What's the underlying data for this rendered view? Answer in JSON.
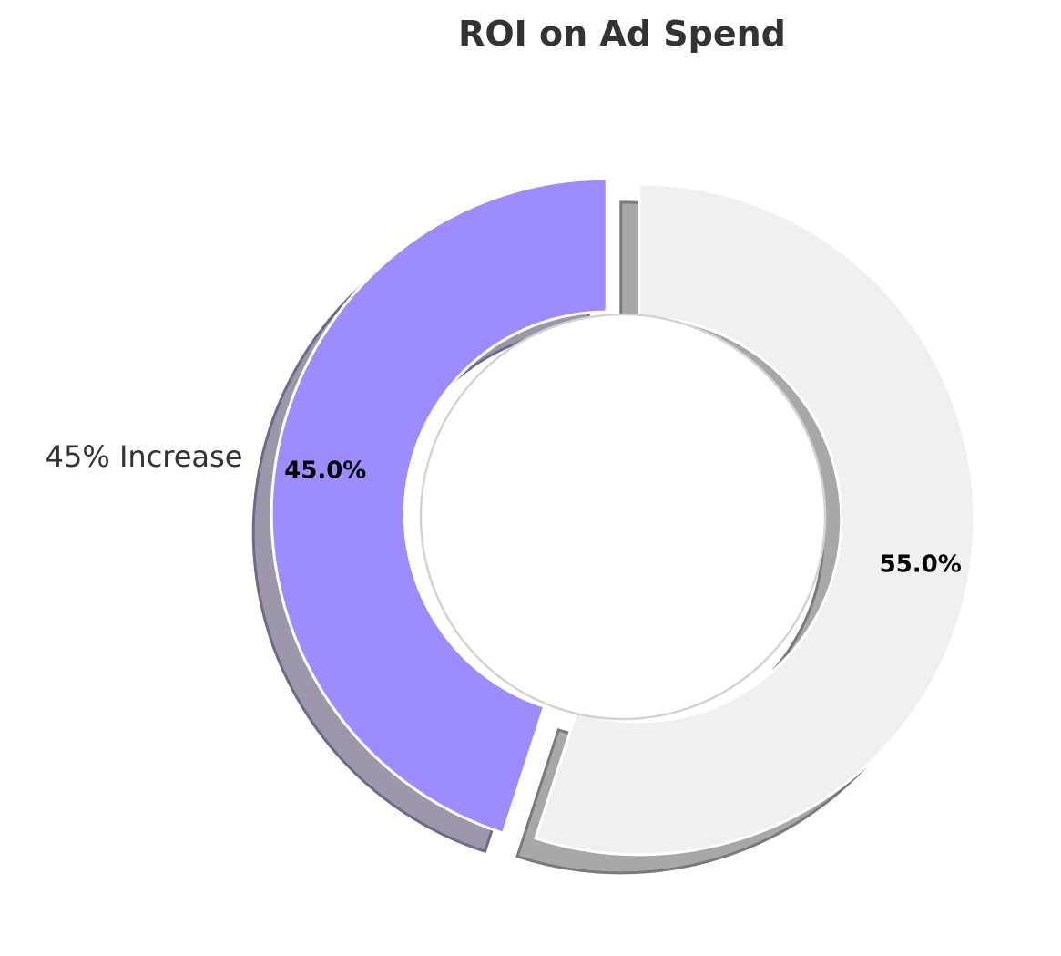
{
  "chart_data": {
    "type": "pie",
    "variant": "donut",
    "title": "ROI on Ad Spend",
    "start_angle_deg": 90,
    "direction": "counterclockwise",
    "shadow": true,
    "slices": [
      {
        "label": "45% Increase",
        "value": 45.0,
        "pct_label": "45.0%",
        "color": "#9c8cfd",
        "exploded": true
      },
      {
        "label": "",
        "value": 55.0,
        "pct_label": "55.0%",
        "color": "#f0f0f0",
        "exploded": true
      }
    ],
    "colors": {
      "shadow": "#a3a3a3",
      "shadow_edge": "#7a7a7a",
      "hole": "#ffffff",
      "hole_edge": "#d3d3d3",
      "slice_edge": "#ffffff"
    }
  }
}
